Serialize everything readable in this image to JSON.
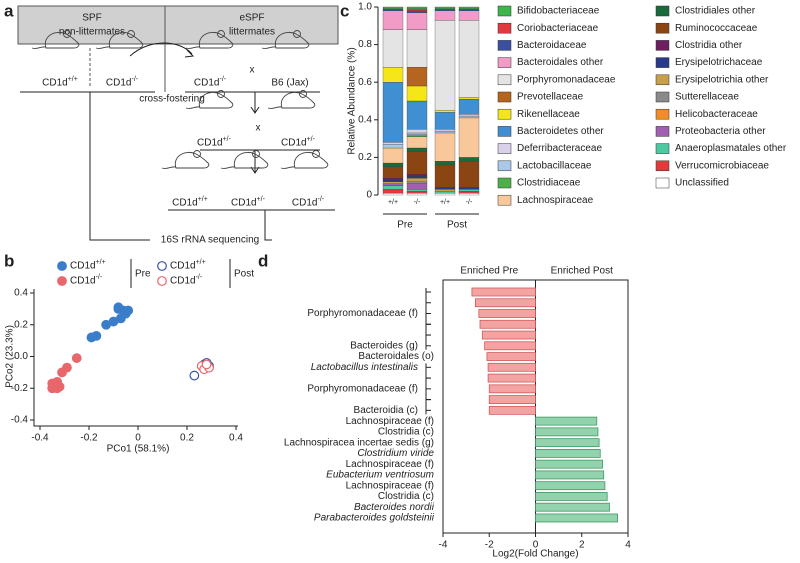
{
  "diagram": {
    "panel": "a",
    "header": [
      {
        "title": "SPF",
        "subtitle": "non-littermates"
      },
      {
        "title": "eSPF",
        "subtitle": "littermates"
      }
    ],
    "mice": [
      "CD1d+/+",
      "CD1d-/-",
      "CD1d-/-",
      "B6 (Jax)",
      "CD1d+/-",
      "CD1d+/-",
      "CD1d+/+",
      "CD1d+/-",
      "CD1d-/-"
    ],
    "crosses": [
      "x",
      "x"
    ],
    "cross_fostering": "cross-fostering",
    "sequencing": "16S rRNA sequencing"
  },
  "chart_data": [
    {
      "type": "stacked_bar",
      "panel": "c",
      "y_label": "Relative Abundance (%)",
      "categories": [
        "+/+",
        "-/-",
        "+/+",
        "-/-"
      ],
      "groups": [
        "Pre",
        "Post"
      ],
      "ylim": [
        0,
        1
      ],
      "yticks": [
        0,
        0.2,
        0.4,
        0.6,
        0.8,
        {
          "value": 1,
          "label": "1.0"
        }
      ],
      "series": [
        {
          "name": "Bifidobacteriaceae",
          "color": "#3cb54a",
          "values": [
            0.01,
            0.01,
            0.01,
            0.01
          ]
        },
        {
          "name": "Coriobacteriaceae",
          "color": "#e03a3e",
          "values": [
            0,
            0.01,
            0,
            0
          ]
        },
        {
          "name": "Bacteroidaceae",
          "color": "#3b4fa0",
          "values": [
            0.01,
            0.01,
            0.01,
            0.01
          ]
        },
        {
          "name": "Bacteroidales other",
          "color": "#f29bc6",
          "values": [
            0.1,
            0.09,
            0.05,
            0.05
          ]
        },
        {
          "name": "Porphyromonadaceae",
          "color": "#e4e4e4",
          "values": [
            0.2,
            0.2,
            0.48,
            0.41
          ]
        },
        {
          "name": "Prevotellaceae",
          "color": "#b5651d",
          "values": [
            0,
            0.1,
            0,
            0
          ]
        },
        {
          "name": "Rikenellaceae",
          "color": "#f5e61a",
          "values": [
            0.08,
            0.08,
            0.01,
            0.01
          ]
        },
        {
          "name": "Bacteroidetes other",
          "color": "#3f8fd2",
          "values": [
            0.32,
            0.15,
            0.09,
            0.08
          ]
        },
        {
          "name": "Deferribacteraceae",
          "color": "#d9d1ea",
          "values": [
            0.01,
            0.02,
            0.01,
            0.01
          ]
        },
        {
          "name": "Lactobacillaceae",
          "color": "#a9c8ea",
          "values": [
            0.02,
            0.01,
            0.01,
            0.01
          ]
        },
        {
          "name": "Clostridiaceae",
          "color": "#4daf4a",
          "values": [
            0,
            0.01,
            0,
            0
          ]
        },
        {
          "name": "Lachnospiraceae",
          "color": "#f8c89a",
          "values": [
            0.08,
            0.06,
            0.15,
            0.21
          ]
        },
        {
          "name": "Clostridiales other",
          "color": "#1a6b3a",
          "values": [
            0.02,
            0.02,
            0.02,
            0.02
          ]
        },
        {
          "name": "Ruminococcaceae",
          "color": "#8b4513",
          "values": [
            0.06,
            0.12,
            0.12,
            0.14
          ]
        },
        {
          "name": "Clostridia other",
          "color": "#6b1f5e",
          "values": [
            0.01,
            0.01,
            0,
            0
          ]
        },
        {
          "name": "Erysipelotrichaceae",
          "color": "#2a3a8a",
          "values": [
            0.01,
            0.01,
            0.01,
            0.01
          ]
        },
        {
          "name": "Erysipelotrichia other",
          "color": "#c8a04a",
          "values": [
            0.01,
            0.02,
            0.01,
            0
          ]
        },
        {
          "name": "Sutterellaceae",
          "color": "#8a8a8a",
          "values": [
            0,
            0.01,
            0,
            0
          ]
        },
        {
          "name": "Helicobacteraceae",
          "color": "#f28c28",
          "values": [
            0,
            0,
            0,
            0
          ]
        },
        {
          "name": "Proteobacteria other",
          "color": "#a05fb0",
          "values": [
            0.01,
            0.03,
            0,
            0
          ]
        },
        {
          "name": "Anaeroplasmatales other",
          "color": "#4cc9a0",
          "values": [
            0.02,
            0.01,
            0.01,
            0.01
          ]
        },
        {
          "name": "Verrucomicrobiaceae",
          "color": "#e23a3a",
          "values": [
            0.02,
            0.01,
            0,
            0.01
          ]
        },
        {
          "name": "Unclassified",
          "color": "#ffffff",
          "values": [
            0.01,
            0.01,
            0.01,
            0.01
          ]
        }
      ]
    },
    {
      "type": "scatter",
      "panel": "b",
      "x_label": "PCo1 (58.1%)",
      "y_label": "PCo2 (23.3%)",
      "xlim": [
        -0.4,
        0.4
      ],
      "xticks": [
        -0.4,
        -0.2,
        0,
        0.2,
        0.4
      ],
      "ylim": [
        -0.4,
        0.4
      ],
      "yticks": [
        -0.4,
        -0.2,
        {
          "value": 0,
          "label": "0.0"
        },
        0.2,
        0.4
      ],
      "legend_groups": [
        "Pre",
        "Post"
      ],
      "series": [
        {
          "name": "CD1d+/+",
          "group": 0,
          "filled": true,
          "color": "#3a7dc9",
          "x": [
            -0.08,
            -0.06,
            -0.05,
            -0.04,
            -0.07,
            -0.1,
            -0.13,
            -0.17,
            -0.19,
            -0.08
          ],
          "y": [
            0.3,
            0.29,
            0.27,
            0.29,
            0.24,
            0.22,
            0.2,
            0.13,
            0.12,
            0.31
          ]
        },
        {
          "name": "CD1d-/-",
          "group": 0,
          "filled": true,
          "color": "#e8676b",
          "x": [
            -0.25,
            -0.29,
            -0.31,
            -0.33,
            -0.34,
            -0.35,
            -0.33,
            -0.35,
            -0.32
          ],
          "y": [
            -0.01,
            -0.07,
            -0.1,
            -0.16,
            -0.18,
            -0.2,
            -0.2,
            -0.17,
            -0.19
          ]
        },
        {
          "name": "CD1d+/+",
          "group": 1,
          "filled": false,
          "color": "#3a55a8",
          "x": [
            0.27,
            0.28,
            0.29,
            0.23,
            0.28
          ],
          "y": [
            -0.05,
            -0.07,
            -0.06,
            -0.12,
            -0.04
          ]
        },
        {
          "name": "CD1d-/-",
          "group": 1,
          "filled": false,
          "color": "#e8676b",
          "x": [
            0.26,
            0.27,
            0.29,
            0.28
          ],
          "y": [
            -0.06,
            -0.08,
            -0.07,
            -0.05
          ]
        }
      ]
    },
    {
      "type": "hbar",
      "panel": "d",
      "x_label": "Log2(Fold Change)",
      "headers": [
        "Enriched Pre",
        "Enriched Post"
      ],
      "xlim": [
        -4,
        4
      ],
      "xticks": [
        -4,
        -2,
        0,
        2,
        4
      ],
      "color_negative": "#f4a3a3",
      "color_positive": "#92d3ad",
      "categories": [
        null,
        null,
        "Porphyromonadaceae (f)",
        null,
        null,
        "Bacteroides (g)",
        "Bacteroidales (o)",
        "Lactobacillus intestinalis",
        null,
        "Porphyromonadaceae (f)",
        null,
        "Bacteroidia (c)",
        "Lachnospiraceae (f)",
        "Clostridia (c)",
        "Lachnospiracea incertae sedis (g)",
        "Clostridium viride",
        "Lachnospiraceae (f)",
        "Eubacterium ventriosum",
        "Lachnospiraceae (f)",
        "Clostridia (c)",
        "Bacteroides nordii",
        "Parabacteroides goldsteinii"
      ],
      "italic": [
        7,
        15,
        17,
        20,
        21
      ],
      "values": [
        -2.75,
        -2.6,
        -2.45,
        -2.4,
        -2.3,
        -2.2,
        -2.1,
        -2.05,
        -2.05,
        -2.0,
        -2.0,
        -2.0,
        2.65,
        2.7,
        2.75,
        2.8,
        2.9,
        2.95,
        3.0,
        3.1,
        3.2,
        3.55
      ]
    }
  ]
}
